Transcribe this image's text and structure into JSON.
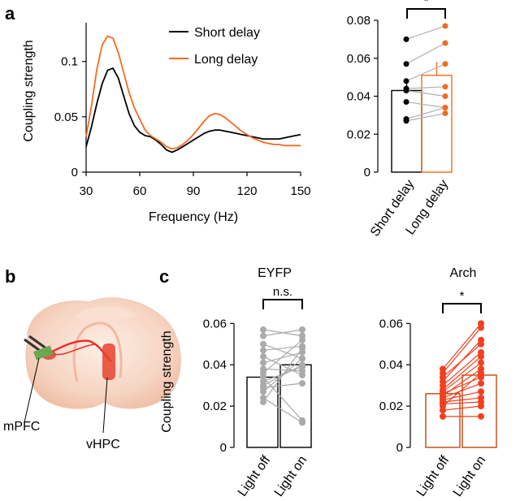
{
  "panels": {
    "a": "a",
    "b": "b",
    "c": "c"
  },
  "colors": {
    "short": "#000000",
    "long": "#f26b21",
    "grey": "#b0b0b0",
    "eyfp_bar": "#000000",
    "arch_bar": "#c1440e",
    "arch_points": "#f2401f",
    "eyfp_points": "#aaaaaa"
  },
  "brain": {
    "labels": {
      "mpfc": "mPFC",
      "vhpc": "vHPC"
    }
  },
  "chart_data": [
    {
      "id": "a-line",
      "type": "line",
      "xlabel": "Frequency (Hz)",
      "ylabel": "Coupling strength",
      "xlim": [
        30,
        150
      ],
      "ylim": [
        0,
        0.135
      ],
      "xticks": [
        30,
        60,
        90,
        120,
        150
      ],
      "yticks": [
        0,
        0.05,
        0.1
      ],
      "ytick_labels": [
        "0",
        "0.05",
        "0.1"
      ],
      "legend": [
        "Short delay",
        "Long delay"
      ],
      "series": [
        {
          "name": "Short delay",
          "x": [
            30,
            33,
            36,
            39,
            42,
            45,
            48,
            51,
            54,
            57,
            60,
            63,
            66,
            69,
            72,
            75,
            78,
            81,
            84,
            87,
            90,
            93,
            96,
            99,
            102,
            105,
            108,
            111,
            114,
            117,
            120,
            123,
            126,
            129,
            132,
            135,
            138,
            141,
            144,
            147,
            150
          ],
          "y": [
            0.023,
            0.041,
            0.062,
            0.08,
            0.092,
            0.094,
            0.085,
            0.069,
            0.053,
            0.042,
            0.036,
            0.033,
            0.032,
            0.029,
            0.025,
            0.02,
            0.018,
            0.02,
            0.023,
            0.026,
            0.029,
            0.032,
            0.035,
            0.037,
            0.038,
            0.038,
            0.037,
            0.036,
            0.035,
            0.034,
            0.033,
            0.032,
            0.031,
            0.03,
            0.03,
            0.03,
            0.03,
            0.031,
            0.032,
            0.033,
            0.034
          ]
        },
        {
          "name": "Long delay",
          "x": [
            30,
            33,
            36,
            39,
            42,
            45,
            48,
            51,
            54,
            57,
            60,
            63,
            66,
            69,
            72,
            75,
            78,
            81,
            84,
            87,
            90,
            93,
            96,
            99,
            102,
            105,
            108,
            111,
            114,
            117,
            120,
            123,
            126,
            129,
            132,
            135,
            138,
            141,
            144,
            147,
            150
          ],
          "y": [
            0.032,
            0.06,
            0.093,
            0.115,
            0.123,
            0.121,
            0.108,
            0.09,
            0.072,
            0.058,
            0.048,
            0.038,
            0.033,
            0.03,
            0.027,
            0.023,
            0.021,
            0.022,
            0.025,
            0.029,
            0.034,
            0.04,
            0.046,
            0.051,
            0.053,
            0.052,
            0.049,
            0.045,
            0.041,
            0.037,
            0.034,
            0.031,
            0.029,
            0.027,
            0.026,
            0.025,
            0.025,
            0.024,
            0.024,
            0.024,
            0.024
          ]
        }
      ]
    },
    {
      "id": "a-bar",
      "type": "bar",
      "categories": [
        "Short delay",
        "Long delay"
      ],
      "values": [
        0.043,
        0.051
      ],
      "errors": [
        0.006,
        0.007
      ],
      "ylim": [
        0,
        0.08
      ],
      "yticks": [
        0,
        0.02,
        0.04,
        0.06,
        0.08
      ],
      "ytick_labels": [
        "0",
        "0.02",
        "0.04",
        "0.06",
        "0.08"
      ],
      "significance": "*",
      "paired_points": [
        [
          0.07,
          0.077
        ],
        [
          0.057,
          0.068
        ],
        [
          0.048,
          0.057
        ],
        [
          0.044,
          0.045
        ],
        [
          0.043,
          0.04
        ],
        [
          0.037,
          0.034
        ],
        [
          0.028,
          0.034
        ],
        [
          0.027,
          0.031
        ]
      ]
    },
    {
      "id": "c-eyfp",
      "type": "bar",
      "title": "EYFP",
      "ylabel": "Coupling strength",
      "categories": [
        "Light off",
        "Light on"
      ],
      "values": [
        0.034,
        0.04
      ],
      "ylim": [
        0,
        0.068
      ],
      "yticks": [
        0,
        0.02,
        0.04,
        0.06
      ],
      "ytick_labels": [
        "0",
        "0.02",
        "0.04",
        "0.06"
      ],
      "significance": "n.s.",
      "paired_points": [
        [
          0.057,
          0.054
        ],
        [
          0.054,
          0.057
        ],
        [
          0.05,
          0.043
        ],
        [
          0.047,
          0.049
        ],
        [
          0.044,
          0.035
        ],
        [
          0.041,
          0.046
        ],
        [
          0.038,
          0.037
        ],
        [
          0.036,
          0.052
        ],
        [
          0.034,
          0.013
        ],
        [
          0.032,
          0.039
        ],
        [
          0.03,
          0.04
        ],
        [
          0.029,
          0.031
        ],
        [
          0.027,
          0.043
        ],
        [
          0.024,
          0.012
        ],
        [
          0.022,
          0.048
        ]
      ]
    },
    {
      "id": "c-arch",
      "type": "bar",
      "title": "Arch",
      "categories": [
        "Light off",
        "Light on"
      ],
      "values": [
        0.026,
        0.035
      ],
      "ylim": [
        0,
        0.068
      ],
      "yticks": [
        0,
        0.02,
        0.04,
        0.06
      ],
      "ytick_labels": [
        "0",
        "0.02",
        "0.04",
        "0.06"
      ],
      "significance": "*",
      "paired_points": [
        [
          0.038,
          0.06
        ],
        [
          0.036,
          0.058
        ],
        [
          0.034,
          0.05
        ],
        [
          0.032,
          0.052
        ],
        [
          0.03,
          0.046
        ],
        [
          0.028,
          0.044
        ],
        [
          0.027,
          0.041
        ],
        [
          0.026,
          0.034
        ],
        [
          0.025,
          0.038
        ],
        [
          0.024,
          0.031
        ],
        [
          0.023,
          0.027
        ],
        [
          0.022,
          0.024
        ],
        [
          0.021,
          0.022
        ],
        [
          0.02,
          0.036
        ],
        [
          0.018,
          0.02
        ],
        [
          0.015,
          0.015
        ]
      ]
    }
  ]
}
